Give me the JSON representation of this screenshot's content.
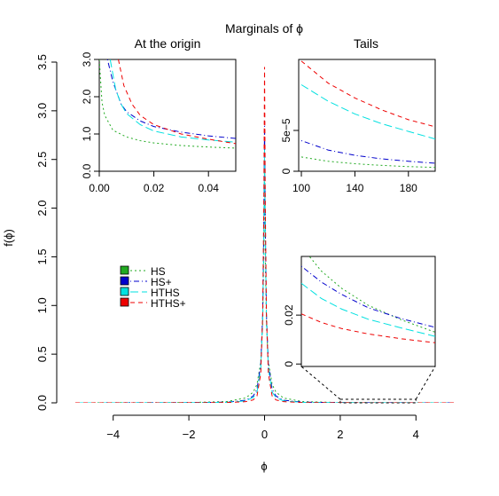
{
  "chart_data": [
    {
      "type": "line",
      "panel": "main",
      "title": "Marginals of ϕ",
      "xlabel": "ϕ",
      "ylabel": "f(ϕ)",
      "xlim": [
        -5,
        5
      ],
      "ylim": [
        0,
        3.5
      ],
      "xticks": [
        -4,
        -2,
        0,
        2,
        4
      ],
      "xtick_labels": [
        "−4",
        "−2",
        "0",
        "2",
        "4"
      ],
      "yticks": [
        0,
        0.5,
        1,
        1.5,
        2,
        2.5,
        3,
        3.5
      ],
      "ytick_labels": [
        "0.0",
        "0.5",
        "1.0",
        "1.5",
        "2.0",
        "2.5",
        "3.0",
        "3.5"
      ],
      "grid": false,
      "legend_position": "center-left",
      "series": [
        {
          "name": "HS",
          "color": "#22aa22",
          "dash": "dotted",
          "points": [
            [
              -5,
              0.0004
            ],
            [
              -3,
              0.0012
            ],
            [
              -2,
              0.003
            ],
            [
              -1,
              0.013
            ],
            [
              -0.5,
              0.05
            ],
            [
              -0.3,
              0.11
            ],
            [
              -0.2,
              0.19
            ],
            [
              -0.1,
              0.42
            ],
            [
              -0.05,
              0.8
            ],
            [
              -0.02,
              1.5
            ],
            [
              0,
              2.6
            ],
            [
              0.02,
              1.5
            ],
            [
              0.05,
              0.8
            ],
            [
              0.1,
              0.42
            ],
            [
              0.2,
              0.19
            ],
            [
              0.3,
              0.11
            ],
            [
              0.5,
              0.05
            ],
            [
              1,
              0.013
            ],
            [
              2,
              0.003
            ],
            [
              3,
              0.0012
            ],
            [
              5,
              0.0004
            ]
          ]
        },
        {
          "name": "HS+",
          "color": "#0000cc",
          "dash": "dotdash",
          "points": [
            [
              -5,
              0.0003
            ],
            [
              -3,
              0.0008
            ],
            [
              -2,
              0.0018
            ],
            [
              -1,
              0.007
            ],
            [
              -0.5,
              0.027
            ],
            [
              -0.3,
              0.07
            ],
            [
              -0.2,
              0.14
            ],
            [
              -0.1,
              0.4
            ],
            [
              -0.05,
              0.9
            ],
            [
              -0.02,
              1.8
            ],
            [
              0,
              2.9
            ],
            [
              0.02,
              1.8
            ],
            [
              0.05,
              0.9
            ],
            [
              0.1,
              0.4
            ],
            [
              0.2,
              0.14
            ],
            [
              0.3,
              0.07
            ],
            [
              0.5,
              0.027
            ],
            [
              1,
              0.007
            ],
            [
              2,
              0.0018
            ],
            [
              3,
              0.0008
            ],
            [
              5,
              0.0003
            ]
          ]
        },
        {
          "name": "HTHS",
          "color": "#00e0e0",
          "dash": "longdash",
          "points": [
            [
              -5,
              0.0002
            ],
            [
              -3,
              0.0006
            ],
            [
              -2,
              0.0014
            ],
            [
              -1,
              0.005
            ],
            [
              -0.5,
              0.02
            ],
            [
              -0.3,
              0.055
            ],
            [
              -0.2,
              0.11
            ],
            [
              -0.1,
              0.35
            ],
            [
              -0.05,
              0.85
            ],
            [
              -0.02,
              1.7
            ],
            [
              0,
              2.6
            ],
            [
              0.02,
              1.7
            ],
            [
              0.05,
              0.85
            ],
            [
              0.1,
              0.35
            ],
            [
              0.2,
              0.11
            ],
            [
              0.3,
              0.055
            ],
            [
              0.5,
              0.02
            ],
            [
              1,
              0.005
            ],
            [
              2,
              0.0014
            ],
            [
              3,
              0.0006
            ],
            [
              5,
              0.0002
            ]
          ]
        },
        {
          "name": "HTHS+",
          "color": "#ee0000",
          "dash": "dashed",
          "points": [
            [
              -5,
              0.0001
            ],
            [
              -3,
              0.0003
            ],
            [
              -2,
              0.0008
            ],
            [
              -1,
              0.0028
            ],
            [
              -0.5,
              0.012
            ],
            [
              -0.3,
              0.03
            ],
            [
              -0.2,
              0.07
            ],
            [
              -0.1,
              0.3
            ],
            [
              -0.05,
              0.9
            ],
            [
              -0.02,
              2.0
            ],
            [
              0,
              3.45
            ],
            [
              0.02,
              2.0
            ],
            [
              0.05,
              0.9
            ],
            [
              0.1,
              0.3
            ],
            [
              0.2,
              0.07
            ],
            [
              0.3,
              0.03
            ],
            [
              0.5,
              0.012
            ],
            [
              1,
              0.0028
            ],
            [
              2,
              0.0008
            ],
            [
              3,
              0.0003
            ],
            [
              5,
              0.0001
            ]
          ]
        }
      ]
    },
    {
      "type": "line",
      "panel": "origin",
      "title": "At the origin",
      "xlim": [
        0,
        0.05
      ],
      "ylim": [
        0,
        3
      ],
      "xticks": [
        0,
        0.02,
        0.04
      ],
      "xtick_labels": [
        "0.00",
        "0.02",
        "0.04"
      ],
      "yticks": [
        0,
        1,
        2,
        3
      ],
      "ytick_labels": [
        "0.0",
        "1.0",
        "2.0",
        "3.0"
      ],
      "series": [
        {
          "name": "HS",
          "points": [
            [
              0,
              3.0
            ],
            [
              0.001,
              1.85
            ],
            [
              0.002,
              1.5
            ],
            [
              0.005,
              1.1
            ],
            [
              0.01,
              0.92
            ],
            [
              0.015,
              0.82
            ],
            [
              0.02,
              0.76
            ],
            [
              0.03,
              0.69
            ],
            [
              0.04,
              0.65
            ],
            [
              0.05,
              0.62
            ]
          ]
        },
        {
          "name": "HS+",
          "points": [
            [
              0.003,
              3.0
            ],
            [
              0.005,
              2.4
            ],
            [
              0.008,
              1.8
            ],
            [
              0.01,
              1.6
            ],
            [
              0.015,
              1.35
            ],
            [
              0.02,
              1.2
            ],
            [
              0.03,
              1.05
            ],
            [
              0.04,
              0.95
            ],
            [
              0.05,
              0.88
            ]
          ]
        },
        {
          "name": "HTHS",
          "points": [
            [
              0.004,
              3.0
            ],
            [
              0.006,
              2.2
            ],
            [
              0.008,
              1.8
            ],
            [
              0.01,
              1.55
            ],
            [
              0.015,
              1.25
            ],
            [
              0.02,
              1.08
            ],
            [
              0.03,
              0.92
            ],
            [
              0.04,
              0.84
            ],
            [
              0.05,
              0.78
            ]
          ]
        },
        {
          "name": "HTHS+",
          "points": [
            [
              0.007,
              3.0
            ],
            [
              0.009,
              2.3
            ],
            [
              0.012,
              1.8
            ],
            [
              0.015,
              1.5
            ],
            [
              0.02,
              1.25
            ],
            [
              0.03,
              1.0
            ],
            [
              0.04,
              0.86
            ],
            [
              0.05,
              0.74
            ]
          ]
        }
      ]
    },
    {
      "type": "line",
      "panel": "tails",
      "title": "Tails",
      "xlim": [
        98,
        200
      ],
      "ylim": [
        0,
        0.000137
      ],
      "xticks": [
        100,
        140,
        180
      ],
      "xtick_labels": [
        "100",
        "140",
        "180"
      ],
      "yticks": [
        0,
        5e-05
      ],
      "ytick_labels": [
        "0",
        "5e−5"
      ],
      "series": [
        {
          "name": "HS",
          "points": [
            [
              100,
              1.75e-05
            ],
            [
              120,
              1.22e-05
            ],
            [
              140,
              9.2e-06
            ],
            [
              160,
              7.2e-06
            ],
            [
              180,
              5.7e-06
            ],
            [
              200,
              4.7e-06
            ]
          ]
        },
        {
          "name": "HS+",
          "points": [
            [
              100,
              3.75e-05
            ],
            [
              120,
              2.6e-05
            ],
            [
              140,
              1.95e-05
            ],
            [
              160,
              1.52e-05
            ],
            [
              180,
              1.22e-05
            ],
            [
              200,
              9.8e-06
            ]
          ]
        },
        {
          "name": "HTHS",
          "points": [
            [
              100,
              0.000106
            ],
            [
              120,
              8.58e-05
            ],
            [
              140,
              7.02e-05
            ],
            [
              160,
              5.83e-05
            ],
            [
              180,
              4.88e-05
            ],
            [
              200,
              3.95e-05
            ]
          ]
        },
        {
          "name": "HTHS+",
          "points": [
            [
              100,
              0.000135
            ],
            [
              120,
              0.000108
            ],
            [
              140,
              8.98e-05
            ],
            [
              160,
              7.52e-05
            ],
            [
              180,
              6.32e-05
            ],
            [
              200,
              5.45e-05
            ]
          ]
        }
      ]
    },
    {
      "type": "line",
      "panel": "zoom",
      "xlim": [
        2,
        4
      ],
      "ylim": [
        -0.001,
        0.044
      ],
      "yticks": [
        0,
        0.02
      ],
      "ytick_labels": [
        "0",
        "0.02"
      ],
      "series": [
        {
          "name": "HS",
          "points": [
            [
              2,
              0.048
            ],
            [
              2.3,
              0.038
            ],
            [
              2.6,
              0.031
            ],
            [
              3.0,
              0.024
            ],
            [
              3.5,
              0.018
            ],
            [
              4,
              0.013
            ]
          ]
        },
        {
          "name": "HS+",
          "points": [
            [
              2,
              0.04
            ],
            [
              2.3,
              0.0335
            ],
            [
              2.6,
              0.0285
            ],
            [
              3.0,
              0.023
            ],
            [
              3.5,
              0.0185
            ],
            [
              4,
              0.015
            ]
          ]
        },
        {
          "name": "HTHS",
          "points": [
            [
              2,
              0.033
            ],
            [
              2.3,
              0.0268
            ],
            [
              2.6,
              0.0225
            ],
            [
              3.0,
              0.0183
            ],
            [
              3.5,
              0.0147
            ],
            [
              4,
              0.0113
            ]
          ]
        },
        {
          "name": "HTHS+",
          "points": [
            [
              2,
              0.0205
            ],
            [
              2.3,
              0.017
            ],
            [
              2.6,
              0.0145
            ],
            [
              3.0,
              0.0123
            ],
            [
              3.5,
              0.0103
            ],
            [
              4,
              0.0087
            ]
          ]
        }
      ]
    }
  ]
}
